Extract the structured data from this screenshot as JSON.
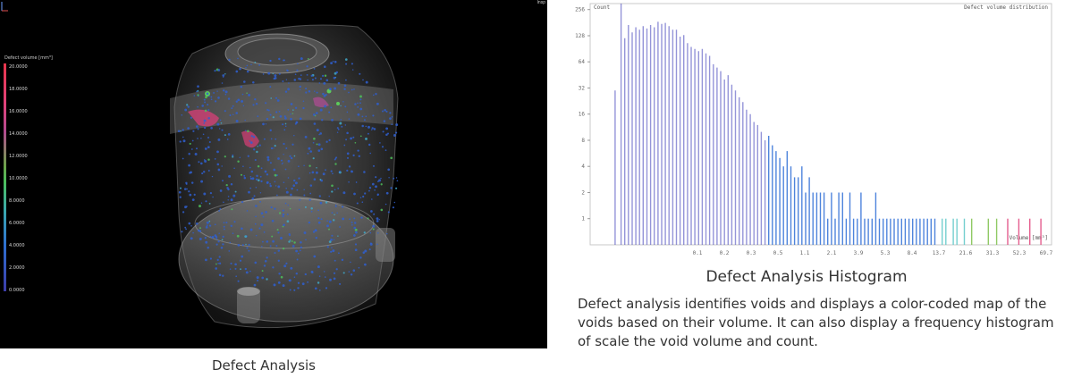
{
  "viewport": {
    "corner_text": "Insp",
    "scale_title": "Defect volume [mm³]",
    "scale_ticks": [
      "20.0000",
      "18.0000",
      "16.0000",
      "14.0000",
      "12.0000",
      "10.0000",
      "8.0000",
      "6.0000",
      "4.0000",
      "2.0000",
      "0.0000"
    ]
  },
  "captions": {
    "left": "Defect Analysis",
    "histogram_title": "Defect Analysis Histogram",
    "description": "Defect analysis identifies voids and displays a color-coded map of the voids based on their volume. It can also display a frequency histogram of scale the void volume and count."
  },
  "chart_data": {
    "type": "bar",
    "title": "Defect volume distribution",
    "ylabel": "Count",
    "xlabel": "Volume [mm³]",
    "y_scale": "log",
    "y_ticks": [
      "256",
      "128",
      "64",
      "32",
      "16",
      "8",
      "4",
      "2",
      "1"
    ],
    "x_ticks": [
      "0.1",
      "0.2",
      "0.3",
      "0.5",
      "1.1",
      "2.1",
      "3.9",
      "5.3",
      "8.4",
      "13.7",
      "21.6",
      "31.3",
      "52.3",
      "69.7"
    ],
    "xlim": [
      0,
      100
    ],
    "ylim": [
      0.5,
      300
    ],
    "colors": {
      "low": "#3d3db8",
      "mid": "#2f6fd6",
      "teal": "#5cc7c7",
      "green": "#7cbf4a",
      "pink": "#e0427a"
    },
    "bars": [
      {
        "x": 5.4,
        "y": 30
      },
      {
        "x": 6.7,
        "y": 300
      },
      {
        "x": 7.5,
        "y": 120
      },
      {
        "x": 8.3,
        "y": 170
      },
      {
        "x": 9.1,
        "y": 140
      },
      {
        "x": 9.9,
        "y": 160
      },
      {
        "x": 10.7,
        "y": 150
      },
      {
        "x": 11.5,
        "y": 165
      },
      {
        "x": 12.3,
        "y": 155
      },
      {
        "x": 13.1,
        "y": 170
      },
      {
        "x": 13.9,
        "y": 160
      },
      {
        "x": 14.7,
        "y": 185
      },
      {
        "x": 15.5,
        "y": 175
      },
      {
        "x": 16.3,
        "y": 180
      },
      {
        "x": 17.1,
        "y": 165
      },
      {
        "x": 17.9,
        "y": 150
      },
      {
        "x": 18.7,
        "y": 150
      },
      {
        "x": 19.5,
        "y": 125
      },
      {
        "x": 20.3,
        "y": 130
      },
      {
        "x": 21.1,
        "y": 105
      },
      {
        "x": 21.9,
        "y": 95
      },
      {
        "x": 22.7,
        "y": 90
      },
      {
        "x": 23.5,
        "y": 85
      },
      {
        "x": 24.3,
        "y": 90
      },
      {
        "x": 25.1,
        "y": 80
      },
      {
        "x": 25.9,
        "y": 75
      },
      {
        "x": 26.7,
        "y": 60
      },
      {
        "x": 27.5,
        "y": 55
      },
      {
        "x": 28.3,
        "y": 50
      },
      {
        "x": 29.1,
        "y": 40
      },
      {
        "x": 29.9,
        "y": 45
      },
      {
        "x": 30.7,
        "y": 35
      },
      {
        "x": 31.5,
        "y": 30
      },
      {
        "x": 32.3,
        "y": 25
      },
      {
        "x": 33.1,
        "y": 22
      },
      {
        "x": 33.9,
        "y": 18
      },
      {
        "x": 34.7,
        "y": 16
      },
      {
        "x": 35.5,
        "y": 13
      },
      {
        "x": 36.3,
        "y": 12
      },
      {
        "x": 37.1,
        "y": 10
      },
      {
        "x": 37.9,
        "y": 8
      },
      {
        "x": 38.7,
        "y": 9
      },
      {
        "x": 39.5,
        "y": 7
      },
      {
        "x": 40.3,
        "y": 6
      },
      {
        "x": 41.1,
        "y": 5
      },
      {
        "x": 41.9,
        "y": 4
      },
      {
        "x": 42.7,
        "y": 6
      },
      {
        "x": 43.5,
        "y": 4
      },
      {
        "x": 44.3,
        "y": 3
      },
      {
        "x": 45.1,
        "y": 3
      },
      {
        "x": 45.9,
        "y": 4
      },
      {
        "x": 46.7,
        "y": 2
      },
      {
        "x": 47.5,
        "y": 3
      },
      {
        "x": 48.3,
        "y": 2
      },
      {
        "x": 49.1,
        "y": 2
      },
      {
        "x": 49.9,
        "y": 2
      },
      {
        "x": 50.7,
        "y": 2
      },
      {
        "x": 51.5,
        "y": 1
      },
      {
        "x": 52.3,
        "y": 2
      },
      {
        "x": 53.1,
        "y": 1
      },
      {
        "x": 53.9,
        "y": 2
      },
      {
        "x": 54.7,
        "y": 2
      },
      {
        "x": 55.5,
        "y": 1
      },
      {
        "x": 56.3,
        "y": 2
      },
      {
        "x": 57.1,
        "y": 1
      },
      {
        "x": 57.9,
        "y": 1
      },
      {
        "x": 58.7,
        "y": 2
      },
      {
        "x": 59.5,
        "y": 1
      },
      {
        "x": 60.3,
        "y": 1
      },
      {
        "x": 61.1,
        "y": 1
      },
      {
        "x": 61.9,
        "y": 2
      },
      {
        "x": 62.7,
        "y": 1
      },
      {
        "x": 63.5,
        "y": 1
      },
      {
        "x": 64.3,
        "y": 1
      },
      {
        "x": 65.1,
        "y": 1
      },
      {
        "x": 65.9,
        "y": 1
      },
      {
        "x": 66.7,
        "y": 1
      },
      {
        "x": 67.5,
        "y": 1
      },
      {
        "x": 68.3,
        "y": 1
      },
      {
        "x": 69.1,
        "y": 1
      },
      {
        "x": 69.9,
        "y": 1
      },
      {
        "x": 70.7,
        "y": 1
      },
      {
        "x": 71.5,
        "y": 1
      },
      {
        "x": 72.3,
        "y": 1
      },
      {
        "x": 73.1,
        "y": 1
      },
      {
        "x": 73.9,
        "y": 1
      },
      {
        "x": 74.7,
        "y": 1
      },
      {
        "x": 76.3,
        "y": 1
      },
      {
        "x": 77.1,
        "y": 1
      },
      {
        "x": 78.7,
        "y": 1
      },
      {
        "x": 79.5,
        "y": 1
      },
      {
        "x": 81.1,
        "y": 1
      },
      {
        "x": 82.7,
        "y": 1
      },
      {
        "x": 86.3,
        "y": 1
      },
      {
        "x": 88.1,
        "y": 1
      },
      {
        "x": 90.5,
        "y": 1
      },
      {
        "x": 92.9,
        "y": 1
      },
      {
        "x": 95.3,
        "y": 1
      },
      {
        "x": 97.7,
        "y": 1
      }
    ]
  }
}
